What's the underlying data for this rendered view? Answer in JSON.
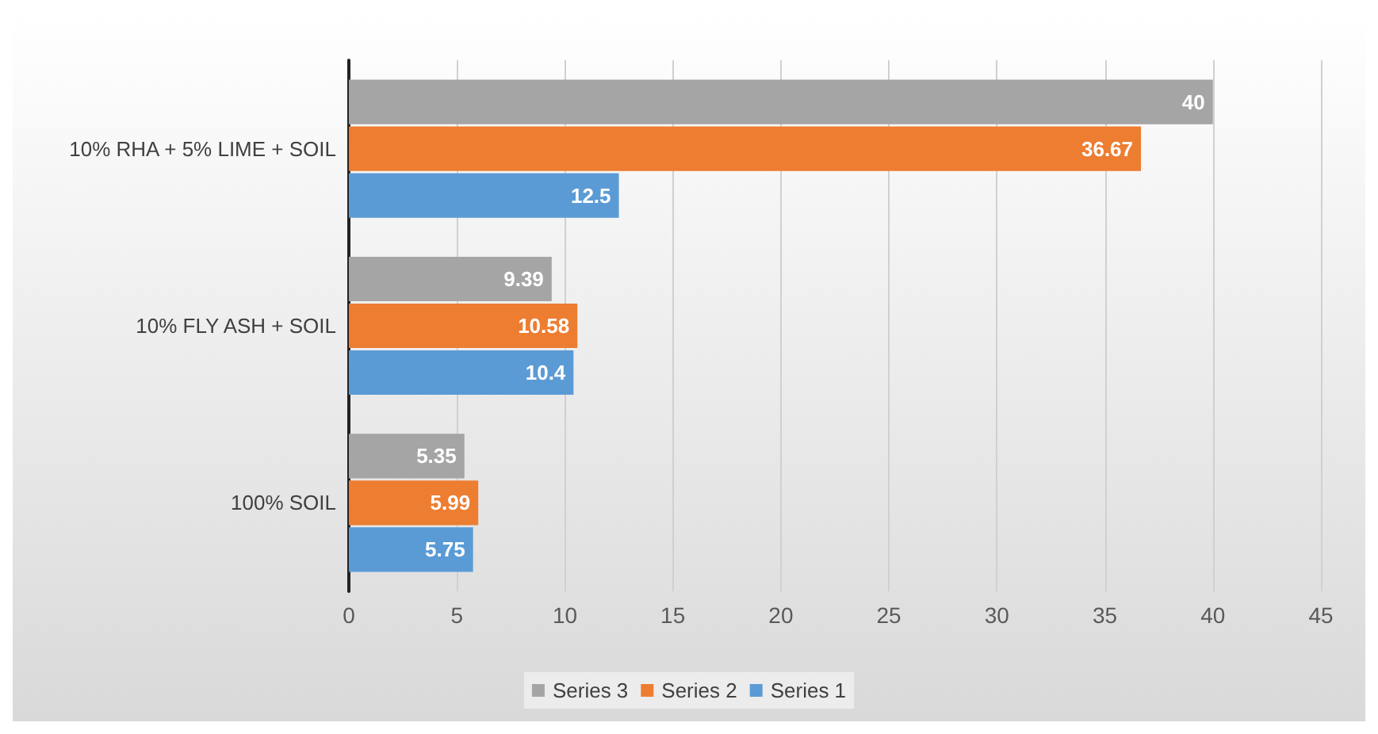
{
  "chart_data": {
    "type": "bar",
    "orientation": "horizontal",
    "categories": [
      "10% RHA + 5% LIME + SOIL",
      "10% FLY ASH + SOIL",
      "100% SOIL"
    ],
    "series": [
      {
        "name": "Series 3",
        "color": "#a5a5a5",
        "values": [
          40,
          9.39,
          5.35
        ]
      },
      {
        "name": "Series 2",
        "color": "#ed7d31",
        "values": [
          36.67,
          10.58,
          5.99
        ]
      },
      {
        "name": "Series 1",
        "color": "#5b9bd5",
        "values": [
          12.5,
          10.4,
          5.75
        ]
      }
    ],
    "xlim": [
      0,
      45
    ],
    "xticks": [
      0,
      5,
      10,
      15,
      20,
      25,
      30,
      35,
      40,
      45
    ],
    "grid": "x",
    "legend": "bottom",
    "data_labels": true
  }
}
